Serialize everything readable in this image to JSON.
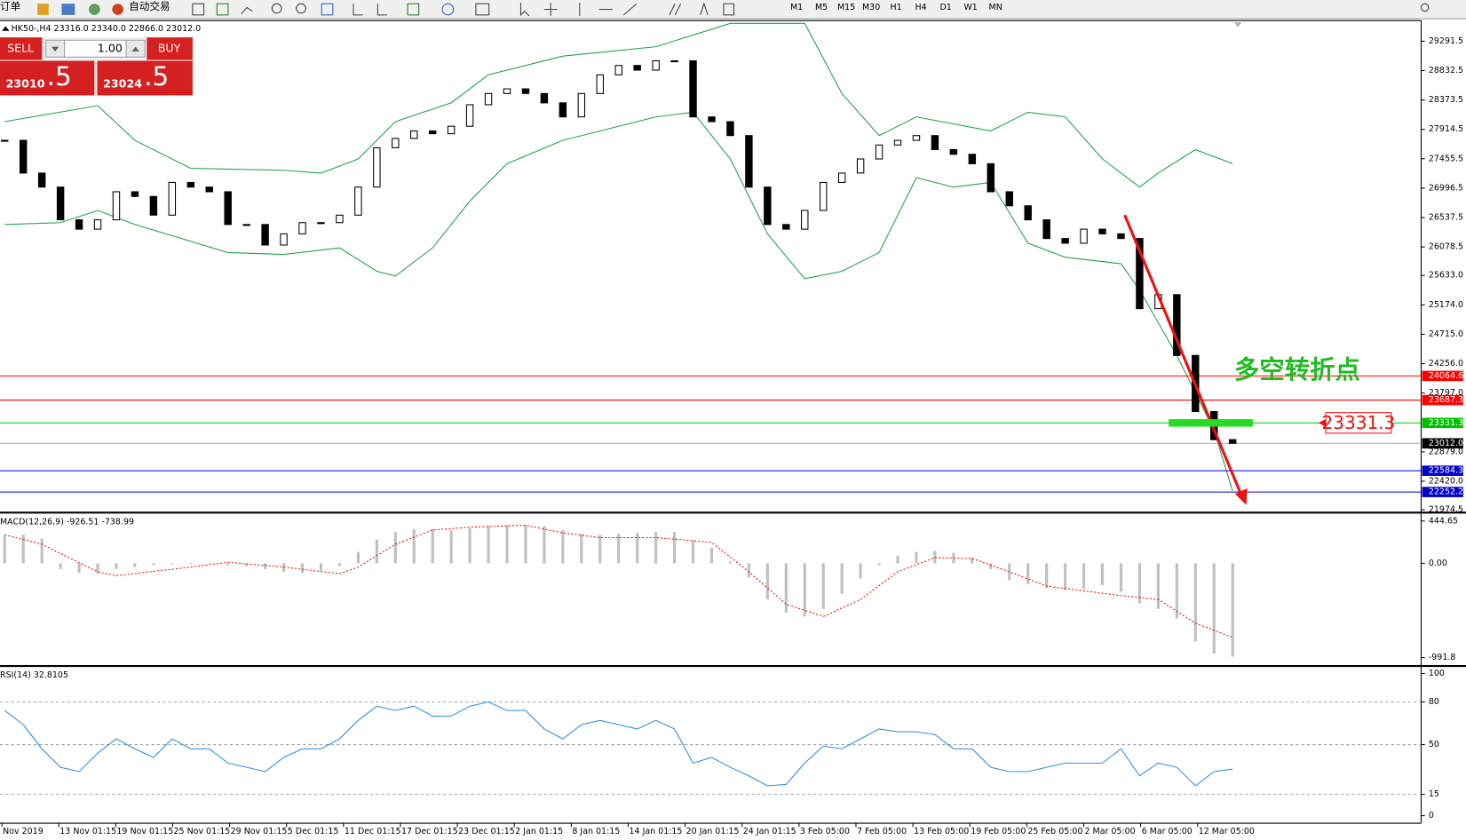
{
  "toolbar": {
    "items": [
      "订单",
      "自动交易"
    ],
    "timeframes": [
      "M1",
      "M5",
      "M15",
      "M30",
      "H1",
      "H4",
      "D1",
      "W1",
      "MN"
    ]
  },
  "trade_panel": {
    "sell": "SELL",
    "lot": "1.00",
    "buy": "BUY",
    "sell_price": "23010",
    "sell_fraction": ".5",
    "buy_price": "23024",
    "buy_fraction": ".5"
  },
  "chart": {
    "type": "candlestick",
    "header": "HK50-,H4  23316.0 23340.0 22866.0 23012.0",
    "ylim": [
      21974.5,
      29291.5
    ],
    "yticks": [
      29291.5,
      28832.5,
      28373.5,
      27914.5,
      27455.5,
      26996.5,
      26537.5,
      26078.5,
      {
        "value": 25633,
        "label": "25633.0"
      },
      {
        "value": 25174,
        "label": "25174.0"
      },
      {
        "value": 24715,
        "label": "24715.0"
      },
      {
        "value": 24256,
        "label": "24256.0"
      },
      {
        "value": 23797,
        "label": "23797.0"
      },
      {
        "value": 22879,
        "label": "22879.0"
      },
      {
        "value": 22420,
        "label": "22420.0"
      },
      21974.5
    ],
    "close": [
      27743,
      27232,
      27013,
      26502,
      26356,
      26502,
      26940,
      26867,
      26575,
      27086,
      27013,
      26940,
      26429,
      26429,
      26108,
      26283,
      26458,
      26458,
      26575,
      27013,
      27627,
      27773,
      27890,
      27846,
      27963,
      28299,
      28474,
      28547,
      28474,
      28328,
      28109,
      28474,
      28766,
      28912,
      28839,
      28985,
      28985,
      28109,
      28035,
      27817,
      27013,
      26429,
      26356,
      26649,
      27086,
      27232,
      27452,
      27670,
      27743,
      27817,
      27598,
      27525,
      27378,
      26940,
      26721,
      26502,
      26210,
      26137,
      26356,
      26283,
      26210,
      25115,
      25334,
      24385,
      23508,
      23070,
      23012
    ],
    "bands": {
      "x_upper": [
        0,
        5,
        7,
        10,
        15,
        17,
        19,
        21,
        24,
        26,
        30,
        35,
        39,
        43,
        45,
        47,
        49,
        53,
        55,
        57,
        59,
        61,
        62,
        64,
        66
      ],
      "upper": [
        28035,
        28284,
        27743,
        27305,
        27276,
        27232,
        27452,
        28035,
        28328,
        28766,
        29058,
        29204,
        29569,
        29569,
        28474,
        27817,
        28109,
        27889,
        28182,
        28109,
        27452,
        27013,
        27232,
        27598,
        27378
      ],
      "x_lower": [
        0,
        3,
        5,
        7,
        10,
        12,
        15,
        18,
        20,
        21,
        23,
        25,
        27,
        30,
        35,
        37,
        39,
        41,
        43,
        45,
        47,
        49,
        51,
        53,
        55,
        57,
        60,
        61,
        63,
        65,
        66
      ],
      "lower": [
        26429,
        26458,
        26648,
        26429,
        26166,
        25991,
        25961,
        26064,
        25699,
        25626,
        26064,
        26794,
        27378,
        27743,
        28109,
        28181,
        27452,
        26283,
        25582,
        25699,
        25991,
        27159,
        27013,
        27086,
        26137,
        25918,
        25816,
        25407,
        24385,
        23216,
        22267
      ]
    },
    "levels": [
      {
        "value": 24064.6,
        "color": "#ff0000"
      },
      {
        "value": 23687.3,
        "color": "#ff0000"
      },
      {
        "value": 23331.3,
        "color": "#00c000"
      },
      {
        "value": 23012,
        "label": "23012.0",
        "color": "#000000"
      },
      {
        "value": 22584.3,
        "color": "#0000c8"
      },
      {
        "value": 22252.2,
        "color": "#0000c8"
      }
    ],
    "annotation": "多空转折点",
    "xticks": [
      "Nov 2019",
      "13 Nov 01:15",
      "19 Nov 01:15",
      "25 Nov 01:15",
      "29 Nov 01:15",
      "5 Dec 01:15",
      "11 Dec 01:15",
      "17 Dec 01:15",
      "23 Dec 01:15",
      "2 Jan 01:15",
      "8 Jan 01:15",
      "14 Jan 01:15",
      "20 Jan 01:15",
      "24 Jan 01:15",
      "3 Feb 05:00",
      "7 Feb 05:00",
      "13 Feb 05:00",
      "19 Feb 05:00",
      "25 Feb 05:00",
      "2 Mar 05:00",
      "6 Mar 05:00",
      "12 Mar 05:00"
    ]
  },
  "macd": {
    "label": "MACD(12,26,9) -926.51 -738.99",
    "ylim": [
      -991.8,
      444.65
    ],
    "yticks": [
      444.65,
      {
        "value": 0,
        "label": "0.00"
      },
      -991.8
    ],
    "histogram": [
      290,
      300,
      260,
      -60,
      -100,
      -110,
      -60,
      -40,
      -20,
      -10,
      -10,
      0,
      -20,
      -30,
      -60,
      -90,
      -100,
      -80,
      -30,
      120,
      250,
      330,
      360,
      360,
      350,
      370,
      390,
      400,
      400,
      390,
      350,
      310,
      300,
      310,
      320,
      330,
      330,
      240,
      160,
      20,
      -150,
      -380,
      -520,
      -560,
      -480,
      -320,
      -160,
      -20,
      80,
      120,
      130,
      110,
      60,
      -60,
      -180,
      -220,
      -260,
      -280,
      -270,
      -230,
      -300,
      -420,
      -480,
      -580,
      -820,
      -950,
      -980
    ],
    "signal_x": [
      0,
      2,
      5,
      6,
      10,
      12,
      15,
      18,
      19,
      21,
      23,
      25,
      28,
      30,
      32,
      35,
      38,
      40,
      42,
      44,
      46,
      48,
      50,
      52,
      54,
      56,
      58,
      60,
      62,
      64,
      66
    ],
    "signal": [
      300,
      200,
      -90,
      -130,
      -40,
      10,
      -40,
      -110,
      -40,
      200,
      350,
      380,
      400,
      320,
      270,
      270,
      220,
      -90,
      -430,
      -560,
      -380,
      -90,
      60,
      50,
      -90,
      -240,
      -290,
      -340,
      -380,
      -630,
      -780
    ]
  },
  "rsi": {
    "label": "RSI(14) 32.8105",
    "ylim": [
      0,
      100
    ],
    "yticks": [
      100,
      80,
      50,
      15,
      0
    ],
    "values": [
      74,
      64,
      47,
      34,
      31,
      44,
      54,
      47,
      41,
      54,
      47,
      47,
      37,
      34,
      31,
      41,
      47,
      47,
      54,
      67,
      77,
      74,
      77,
      70,
      70,
      77,
      80,
      74,
      74,
      61,
      54,
      64,
      67,
      64,
      61,
      67,
      61,
      37,
      41,
      34,
      28,
      21,
      22,
      37,
      49,
      47,
      54,
      61,
      59,
      59,
      57,
      47,
      47,
      34,
      31,
      31,
      34,
      37,
      37,
      37,
      47,
      28,
      37,
      34,
      21,
      31,
      32.8105
    ]
  }
}
